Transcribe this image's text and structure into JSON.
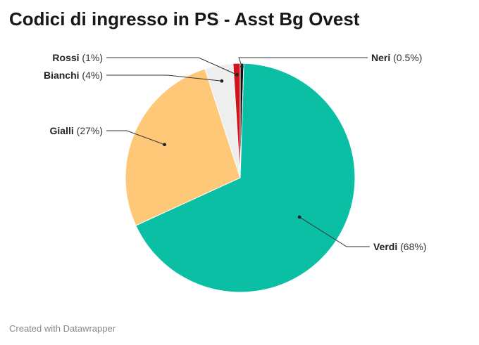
{
  "title": "Codici di ingresso in PS - Asst Bg Ovest",
  "footer": "Created with Datawrapper",
  "chart_data": {
    "type": "pie",
    "title": "Codici di ingresso in PS - Asst Bg Ovest",
    "slices": [
      {
        "label": "Neri",
        "pct_text": "(0.5%)",
        "value": 0.5,
        "color": "#111111"
      },
      {
        "label": "Verdi",
        "pct_text": "(68%)",
        "value": 68,
        "color": "#0abfa3"
      },
      {
        "label": "Gialli",
        "pct_text": "(27%)",
        "value": 27,
        "color": "#fec878"
      },
      {
        "label": "Bianchi",
        "pct_text": "(4%)",
        "value": 4,
        "color": "#eeeeee"
      },
      {
        "label": "Rossi",
        "pct_text": "(1%)",
        "value": 1,
        "color": "#d0141c"
      }
    ]
  }
}
